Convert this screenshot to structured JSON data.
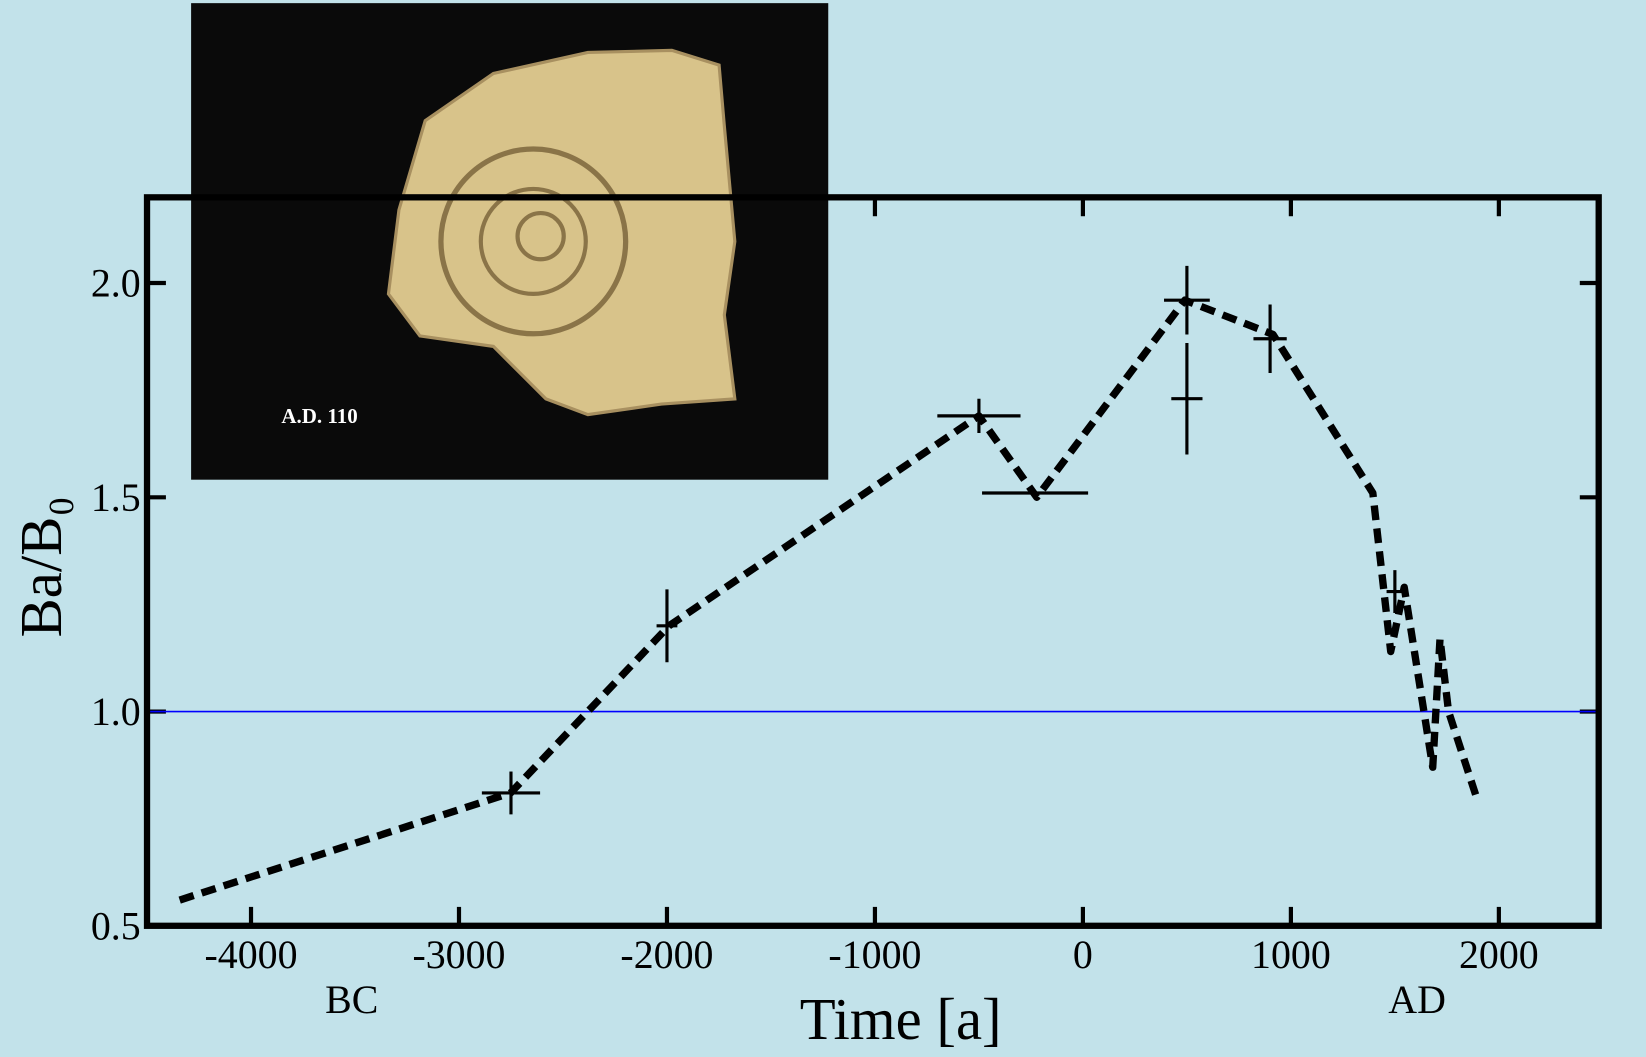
{
  "chart_data": {
    "type": "line",
    "xlabel": "Time [a]",
    "ylabel": "Ba/B₀",
    "left_note": "BC",
    "right_note": "AD",
    "inset_label": "A.D. 110",
    "xlim": [
      -4500,
      2480
    ],
    "ylim": [
      0.5,
      2.2
    ],
    "xticks": [
      -4000,
      -3000,
      -2000,
      -1000,
      0,
      1000,
      2000
    ],
    "yticks": [
      {
        "value": 0.5,
        "label": "0.5"
      },
      {
        "value": 1.0,
        "label": "1.0"
      },
      {
        "value": 1.5,
        "label": "1.5"
      },
      {
        "value": 2.0,
        "label": "2.0"
      }
    ],
    "hline": {
      "value": 1.0,
      "color": "#0000ff"
    },
    "series": [
      {
        "color": "#000000",
        "x": [
          -4343,
          -2752,
          -1990,
          -500,
          -222,
          490,
          914,
          1394,
          1480,
          1545,
          1682,
          1717,
          1758,
          1899
        ],
        "values": [
          0.56,
          0.81,
          1.2,
          1.69,
          1.5,
          1.96,
          1.88,
          1.51,
          1.14,
          1.29,
          0.87,
          1.17,
          1.0,
          0.79
        ]
      }
    ],
    "errorbars": {
      "x": [
        -2750,
        -2000,
        -500,
        -230,
        500,
        500,
        900,
        1500
      ],
      "y": [
        0.81,
        1.2,
        1.69,
        1.51,
        1.96,
        1.73,
        1.87,
        1.28
      ],
      "xerr": [
        140,
        50,
        200,
        255,
        110,
        75,
        80,
        40
      ],
      "yerr": [
        0.05,
        0.085,
        0.04,
        0,
        0.08,
        0.13,
        0.08,
        0.05
      ]
    }
  }
}
